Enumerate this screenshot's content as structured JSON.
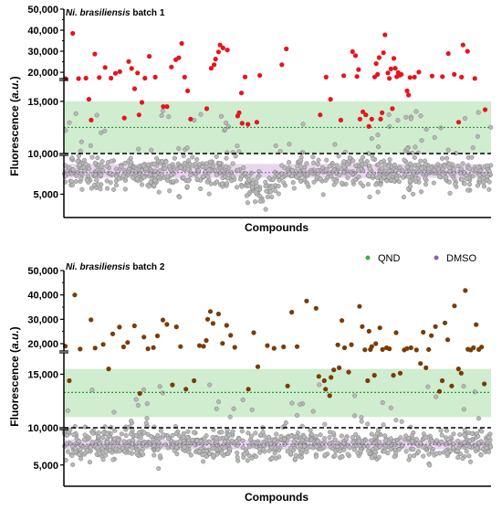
{
  "chart_data": [
    {
      "type": "scatter",
      "title_italic": "Ni. brasiliensis",
      "title_rest": " batch 1",
      "xlabel": "Compounds",
      "ylabel": "Fluorescence (a.u.)",
      "ylabel_prefix": "Fluorescence (",
      "ylabel_italic": "a.u.",
      "ylabel_suffix": ")",
      "y_axis_segments": [
        {
          "range": [
            2000,
            10000
          ],
          "ticks": [
            "5,000"
          ]
        },
        {
          "range": [
            10000,
            17000
          ],
          "ticks": [
            "10,000",
            "15,000"
          ]
        },
        {
          "range": [
            17000,
            50000
          ],
          "ticks": [
            "20,000",
            "30,000",
            "40,000",
            "50,000"
          ]
        }
      ],
      "reference_lines": {
        "cutoff": 10000,
        "qnd_mean": 12500,
        "dmso_mean": 7800
      },
      "qnd_band": [
        10000,
        15000
      ],
      "dmso_band": [
        7100,
        8900
      ],
      "hit_color": "#e8141c",
      "series": [
        {
          "points": [
            [
              2,
              17000
            ],
            [
              12,
              38500
            ],
            [
              20,
              17000
            ],
            [
              30,
              17200
            ],
            [
              34,
              15200
            ],
            [
              37,
              13200
            ],
            [
              42,
              28700
            ],
            [
              48,
              17500
            ],
            [
              56,
              22300
            ],
            [
              64,
              17200
            ],
            [
              70,
              19500
            ],
            [
              76,
              20300
            ],
            [
              82,
              13400
            ],
            [
              88,
              25100
            ],
            [
              92,
              21800
            ],
            [
              96,
              16200
            ],
            [
              100,
              19700
            ],
            [
              102,
              13700
            ],
            [
              106,
              14900
            ],
            [
              110,
              17200
            ],
            [
              116,
              27600
            ],
            [
              124,
              17700
            ],
            [
              135,
              14500
            ],
            [
              140,
              14500
            ],
            [
              146,
              22500
            ],
            [
              152,
              26000
            ],
            [
              156,
              26900
            ],
            [
              160,
              33700
            ],
            [
              164,
              17700
            ],
            [
              168,
              16000
            ],
            [
              172,
              13300
            ],
            [
              194,
              14300
            ],
            [
              200,
              21900
            ],
            [
              204,
              23600
            ],
            [
              206,
              26300
            ],
            [
              210,
              29700
            ],
            [
              212,
              33000
            ],
            [
              216,
              31600
            ],
            [
              222,
              30600
            ],
            [
              236,
              13600
            ],
            [
              238,
              13900
            ],
            [
              241,
              15800
            ],
            [
              242,
              12900
            ],
            [
              246,
              17800
            ],
            [
              250,
              12800
            ],
            [
              262,
              13000
            ],
            [
              266,
              18500
            ],
            [
              296,
              23600
            ],
            [
              302,
              31100
            ],
            [
              348,
              13700
            ],
            [
              356,
              17700
            ],
            [
              362,
              15200
            ],
            [
              376,
              13200
            ],
            [
              380,
              18400
            ],
            [
              392,
              29800
            ],
            [
              396,
              27900
            ],
            [
              398,
              18000
            ],
            [
              400,
              21300
            ],
            [
              402,
              13300
            ],
            [
              406,
              14000
            ],
            [
              410,
              13700
            ],
            [
              414,
              12600
            ],
            [
              418,
              13300
            ],
            [
              422,
              17800
            ],
            [
              424,
              24100
            ],
            [
              426,
              19000
            ],
            [
              428,
              27000
            ],
            [
              430,
              13300
            ],
            [
              432,
              13900
            ],
            [
              434,
              29300
            ],
            [
              436,
              37800
            ],
            [
              440,
              19700
            ],
            [
              442,
              17100
            ],
            [
              444,
              21600
            ],
            [
              446,
              14300
            ],
            [
              448,
              26600
            ],
            [
              450,
              21900
            ],
            [
              452,
              17900
            ],
            [
              454,
              19900
            ],
            [
              456,
              18600
            ],
            [
              458,
              19000
            ],
            [
              466,
              16000
            ],
            [
              468,
              15600
            ],
            [
              470,
              17500
            ],
            [
              476,
              17700
            ],
            [
              482,
              20100
            ],
            [
              500,
              18200
            ],
            [
              514,
              17900
            ],
            [
              522,
              28900
            ],
            [
              530,
              19000
            ],
            [
              536,
              13000
            ],
            [
              540,
              17700
            ],
            [
              542,
              33000
            ],
            [
              548,
              30000
            ],
            [
              558,
              17100
            ],
            [
              572,
              14200
            ]
          ]
        }
      ]
    },
    {
      "type": "scatter",
      "title_italic": "Ni. brasiliensis",
      "title_rest": " batch 2",
      "xlabel": "Compounds",
      "ylabel": "Fluorescence (a.u.)",
      "ylabel_prefix": "Fluorescence (",
      "ylabel_italic": "a.u.",
      "ylabel_suffix": ")",
      "y_axis_segments": [
        {
          "range": [
            2000,
            10000
          ],
          "ticks": [
            "5,000"
          ]
        },
        {
          "range": [
            10000,
            17000
          ],
          "ticks": [
            "10,000",
            "15,000"
          ]
        },
        {
          "range": [
            17000,
            50000
          ],
          "ticks": [
            "20,000",
            "30,000",
            "40,000",
            "50,000"
          ]
        }
      ],
      "reference_lines": {
        "cutoff": 10000,
        "qnd_mean": 13300,
        "dmso_mean": 7900
      },
      "qnd_band": [
        11000,
        15500
      ],
      "dmso_band": [
        7200,
        8600
      ],
      "hit_color": "#7a3b06",
      "legend": [
        {
          "label": "QND",
          "color": "#3fae49"
        },
        {
          "label": "DMSO",
          "color": "#8b5fb0"
        }
      ],
      "series": [
        {
          "points": [
            [
              2,
              19000
            ],
            [
              8,
              14400
            ],
            [
              16,
              40000
            ],
            [
              24,
              17800
            ],
            [
              40,
              29800
            ],
            [
              46,
              18200
            ],
            [
              58,
              19700
            ],
            [
              66,
              15500
            ],
            [
              72,
              24000
            ],
            [
              82,
              26800
            ],
            [
              88,
              18700
            ],
            [
              94,
              20500
            ],
            [
              104,
              27300
            ],
            [
              112,
              13200
            ],
            [
              118,
              22700
            ],
            [
              124,
              17900
            ],
            [
              132,
              18400
            ],
            [
              138,
              23200
            ],
            [
              146,
              29700
            ],
            [
              152,
              27900
            ],
            [
              160,
              14000
            ],
            [
              166,
              26900
            ],
            [
              172,
              18800
            ],
            [
              180,
              13600
            ],
            [
              192,
              14400
            ],
            [
              200,
              19200
            ],
            [
              206,
              18900
            ],
            [
              210,
              21300
            ],
            [
              212,
              30000
            ],
            [
              216,
              33200
            ],
            [
              220,
              28300
            ],
            [
              228,
              32200
            ],
            [
              234,
              20100
            ],
            [
              240,
              27500
            ],
            [
              246,
              23400
            ],
            [
              252,
              18500
            ],
            [
              272,
              13600
            ],
            [
              280,
              24500
            ],
            [
              286,
              15700
            ],
            [
              300,
              19200
            ],
            [
              310,
              18100
            ],
            [
              324,
              18700
            ],
            [
              330,
              13900
            ],
            [
              336,
              32900
            ],
            [
              344,
              18800
            ],
            [
              358,
              37500
            ],
            [
              372,
              34500
            ],
            [
              376,
              14800
            ],
            [
              384,
              14400
            ],
            [
              386,
              13600
            ],
            [
              392,
              13000
            ],
            [
              394,
              14700
            ],
            [
              398,
              15400
            ],
            [
              404,
              19500
            ],
            [
              406,
              15600
            ],
            [
              410,
              29500
            ],
            [
              414,
              18300
            ],
            [
              420,
              15200
            ],
            [
              424,
              19600
            ],
            [
              436,
              35300
            ],
            [
              440,
              27000
            ],
            [
              444,
              17500
            ],
            [
              448,
              14400
            ],
            [
              450,
              25100
            ],
            [
              452,
              17600
            ],
            [
              454,
              18800
            ],
            [
              458,
              14900
            ],
            [
              460,
              20000
            ],
            [
              466,
              26500
            ],
            [
              470,
              17600
            ],
            [
              476,
              18300
            ],
            [
              480,
              17900
            ],
            [
              486,
              14900
            ],
            [
              490,
              24500
            ],
            [
              496,
              15100
            ],
            [
              502,
              17400
            ],
            [
              506,
              18000
            ],
            [
              512,
              18300
            ],
            [
              520,
              17400
            ],
            [
              526,
              16000
            ],
            [
              530,
              24700
            ],
            [
              534,
              15600
            ],
            [
              538,
              17600
            ],
            [
              542,
              23300
            ],
            [
              548,
              27000
            ],
            [
              554,
              13400
            ],
            [
              558,
              14400
            ],
            [
              562,
              28500
            ],
            [
              566,
              21600
            ],
            [
              572,
              13900
            ],
            [
              576,
              35500
            ],
            [
              582,
              15500
            ],
            [
              586,
              15100
            ],
            [
              592,
              41800
            ],
            [
              596,
              17700
            ],
            [
              600,
              17400
            ],
            [
              604,
              18300
            ],
            [
              608,
              27800
            ],
            [
              612,
              17600
            ],
            [
              616,
              18600
            ],
            [
              620,
              14100
            ]
          ]
        }
      ]
    }
  ]
}
